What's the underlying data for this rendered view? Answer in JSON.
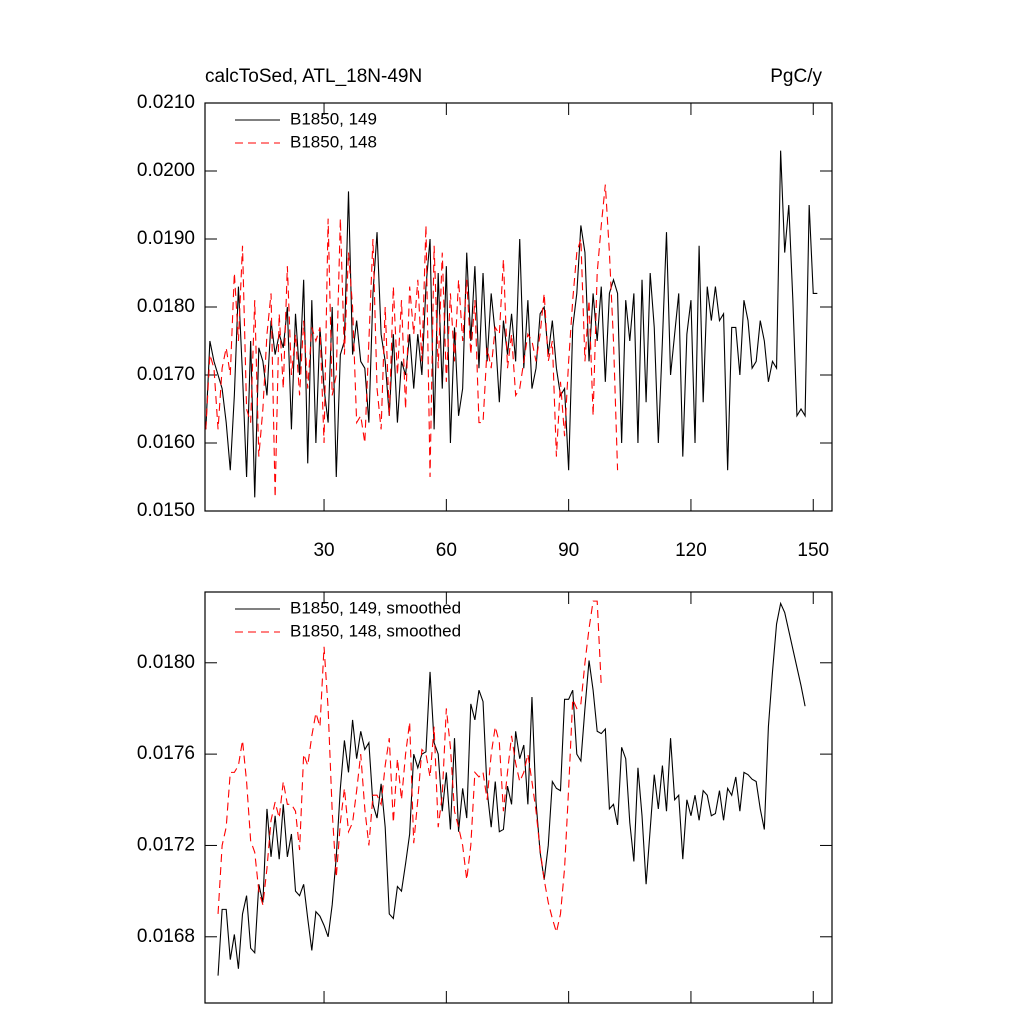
{
  "chart_data": [
    {
      "type": "line",
      "title": "calcToSed, ATL_18N-49N",
      "units": "PgC/y",
      "x": [
        1,
        2,
        3,
        4,
        5,
        6,
        7,
        8,
        9,
        10,
        11,
        12,
        13,
        14,
        15,
        16,
        17,
        18,
        19,
        20,
        21,
        22,
        23,
        24,
        25,
        26,
        27,
        28,
        29,
        30,
        31,
        32,
        33,
        34,
        35,
        36,
        37,
        38,
        39,
        40,
        41,
        42,
        43,
        44,
        45,
        46,
        47,
        48,
        49,
        50,
        51,
        52,
        53,
        54,
        55,
        56,
        57,
        58,
        59,
        60,
        61,
        62,
        63,
        64,
        65,
        66,
        67,
        68,
        69,
        70,
        71,
        72,
        73,
        74,
        75,
        76,
        77,
        78,
        79,
        80,
        81,
        82,
        83,
        84,
        85,
        86,
        87,
        88,
        89,
        90,
        91,
        92,
        93,
        94,
        95,
        96,
        97,
        98,
        99,
        100,
        101,
        102,
        103,
        104,
        105,
        106,
        107,
        108,
        109,
        110,
        111,
        112,
        113,
        114,
        115,
        116,
        117,
        118,
        119,
        120,
        121,
        122,
        123,
        124,
        125,
        126,
        127,
        128,
        129,
        130,
        131,
        132,
        133,
        134,
        135,
        136,
        137,
        138,
        139,
        140,
        141,
        142,
        143,
        144,
        145,
        146,
        147,
        148,
        149,
        150,
        151
      ],
      "series": [
        {
          "name": "B1850, 149",
          "color": "#000000",
          "dashed": false,
          "values": [
            0.0162,
            0.0175,
            0.0172,
            0.017,
            0.0168,
            0.0163,
            0.0156,
            0.0167,
            0.0183,
            0.017,
            0.0155,
            0.0175,
            0.0152,
            0.0174,
            0.0172,
            0.0167,
            0.0178,
            0.0173,
            0.0176,
            0.0174,
            0.018,
            0.0162,
            0.0179,
            0.017,
            0.0184,
            0.0157,
            0.0181,
            0.016,
            0.0177,
            0.0168,
            0.0163,
            0.018,
            0.0155,
            0.0173,
            0.0175,
            0.0197,
            0.0173,
            0.0178,
            0.0172,
            0.0171,
            0.0163,
            0.0182,
            0.0191,
            0.0176,
            0.0172,
            0.0164,
            0.0176,
            0.0163,
            0.0172,
            0.017,
            0.0176,
            0.0168,
            0.0176,
            0.017,
            0.0183,
            0.019,
            0.0162,
            0.0185,
            0.0168,
            0.0186,
            0.016,
            0.0177,
            0.0164,
            0.0168,
            0.0188,
            0.0175,
            0.0186,
            0.0171,
            0.0185,
            0.0172,
            0.0182,
            0.0176,
            0.0166,
            0.0178,
            0.0173,
            0.0179,
            0.0172,
            0.019,
            0.0171,
            0.0181,
            0.0168,
            0.0171,
            0.0179,
            0.018,
            0.0173,
            0.0178,
            0.0171,
            0.0167,
            0.0168,
            0.0156,
            0.0177,
            0.0182,
            0.0192,
            0.0188,
            0.0172,
            0.0182,
            0.0175,
            0.0183,
            0.0169,
            0.0182,
            0.0184,
            0.0182,
            0.016,
            0.0181,
            0.0175,
            0.0182,
            0.016,
            0.0184,
            0.0166,
            0.0185,
            0.0177,
            0.016,
            0.0175,
            0.0191,
            0.017,
            0.0176,
            0.0182,
            0.0158,
            0.0176,
            0.0181,
            0.016,
            0.0189,
            0.0166,
            0.0183,
            0.0178,
            0.0183,
            0.0178,
            0.0179,
            0.0156,
            0.0177,
            0.0177,
            0.017,
            0.0181,
            0.0178,
            0.0171,
            0.0172,
            0.0178,
            0.0175,
            0.0169,
            0.0172,
            0.0171,
            0.0203,
            0.0188,
            0.0195,
            0.0181,
            0.0164,
            0.0165,
            0.0164,
            0.0195,
            0.0182,
            0.0182
          ]
        },
        {
          "name": "B1850, 148",
          "color": "#ff0000",
          "dashed": true,
          "values": [
            0.0162,
            0.0173,
            0.0171,
            0.0162,
            0.0171,
            0.0174,
            0.017,
            0.0185,
            0.0175,
            0.0189,
            0.0165,
            0.0163,
            0.0181,
            0.0158,
            0.0165,
            0.0176,
            0.0182,
            0.0152,
            0.0179,
            0.0168,
            0.0186,
            0.017,
            0.0176,
            0.0167,
            0.0178,
            0.0168,
            0.0177,
            0.0175,
            0.0177,
            0.016,
            0.0193,
            0.0167,
            0.017,
            0.0193,
            0.0173,
            0.0188,
            0.018,
            0.0163,
            0.0164,
            0.016,
            0.0175,
            0.019,
            0.0168,
            0.0162,
            0.018,
            0.0164,
            0.0183,
            0.017,
            0.0181,
            0.0165,
            0.0183,
            0.0176,
            0.0184,
            0.0172,
            0.0192,
            0.0155,
            0.0189,
            0.0171,
            0.0188,
            0.0169,
            0.0182,
            0.0172,
            0.0184,
            0.0175,
            0.0184,
            0.0173,
            0.0181,
            0.0163,
            0.0163,
            0.0174,
            0.0171,
            0.0177,
            0.0176,
            0.0187,
            0.0171,
            0.0176,
            0.0167,
            0.0168,
            0.0172,
            0.0176,
            0.0175,
            0.0172,
            0.0176,
            0.0182,
            0.0172,
            0.0175,
            0.0158,
            0.0169,
            0.0161,
            0.0172,
            0.0181,
            0.0188,
            0.019,
            0.0172,
            0.0181,
            0.0164,
            0.0185,
            0.0192,
            0.0198,
            0.0188,
            0.0175,
            0.0156,
            null,
            null,
            null,
            null,
            null,
            null,
            null,
            null,
            null,
            null,
            null,
            null,
            null,
            null,
            null,
            null,
            null,
            null,
            null,
            null,
            null,
            null,
            null,
            null,
            null,
            null,
            null,
            null,
            null,
            null,
            null,
            null,
            null,
            null,
            null,
            null,
            null,
            null,
            null,
            null,
            null,
            null,
            null,
            null,
            null,
            null,
            null,
            null,
            null
          ]
        }
      ],
      "xlim": [
        0.8,
        154.6
      ],
      "xticks": [
        30,
        60,
        90,
        120,
        150
      ],
      "ylim": [
        0.015,
        0.021
      ],
      "yticks": [
        {
          "value": 0.015,
          "label": "0.0150"
        },
        {
          "value": 0.016,
          "label": "0.0160"
        },
        {
          "value": 0.017,
          "label": "0.0170"
        },
        {
          "value": 0.018,
          "label": "0.0180"
        },
        {
          "value": 0.019,
          "label": "0.0190"
        },
        {
          "value": 0.02,
          "label": "0.0200"
        },
        {
          "value": 0.021,
          "label": "0.0210"
        }
      ]
    },
    {
      "type": "line",
      "x": [
        4,
        5,
        6,
        7,
        8,
        9,
        10,
        11,
        12,
        13,
        14,
        15,
        16,
        17,
        18,
        19,
        20,
        21,
        22,
        23,
        24,
        25,
        26,
        27,
        28,
        29,
        30,
        31,
        32,
        33,
        34,
        35,
        36,
        37,
        38,
        39,
        40,
        41,
        42,
        43,
        44,
        45,
        46,
        47,
        48,
        49,
        50,
        51,
        52,
        53,
        54,
        55,
        56,
        57,
        58,
        59,
        60,
        61,
        62,
        63,
        64,
        65,
        66,
        67,
        68,
        69,
        70,
        71,
        72,
        73,
        74,
        75,
        76,
        77,
        78,
        79,
        80,
        81,
        82,
        83,
        84,
        85,
        86,
        87,
        88,
        89,
        90,
        91,
        92,
        93,
        94,
        95,
        96,
        97,
        98,
        99,
        100,
        101,
        102,
        103,
        104,
        105,
        106,
        107,
        108,
        109,
        110,
        111,
        112,
        113,
        114,
        115,
        116,
        117,
        118,
        119,
        120,
        121,
        122,
        123,
        124,
        125,
        126,
        127,
        128,
        129,
        130,
        131,
        132,
        133,
        134,
        135,
        136,
        137,
        138,
        139,
        140,
        141,
        142,
        143,
        144,
        145,
        146,
        147,
        148
      ],
      "series": [
        {
          "name": "B1850, 149, smoothed",
          "color": "#000000",
          "dashed": false,
          "values": [
            0.01663,
            0.01692,
            0.01692,
            0.0167,
            0.01681,
            0.01666,
            0.0169,
            0.01698,
            0.01675,
            0.01673,
            0.01703,
            0.01695,
            0.01736,
            0.01715,
            0.01733,
            0.01714,
            0.01738,
            0.01715,
            0.01725,
            0.017,
            0.01698,
            0.01703,
            0.01688,
            0.01674,
            0.01691,
            0.01689,
            0.01685,
            0.0168,
            0.01694,
            0.01715,
            0.01745,
            0.01766,
            0.01752,
            0.01775,
            0.01758,
            0.0177,
            0.01762,
            0.01765,
            0.01738,
            0.01732,
            0.01747,
            0.01728,
            0.0169,
            0.01688,
            0.01702,
            0.017,
            0.01712,
            0.01725,
            0.0176,
            0.01754,
            0.0176,
            0.01761,
            0.01796,
            0.01765,
            0.0176,
            0.01735,
            0.01752,
            0.01727,
            0.01767,
            0.01726,
            0.01745,
            0.01732,
            0.01782,
            0.01775,
            0.01788,
            0.01783,
            0.01744,
            0.01728,
            0.01748,
            0.01726,
            0.01727,
            0.01746,
            0.01738,
            0.0177,
            0.01758,
            0.01764,
            0.01738,
            0.01785,
            0.01739,
            0.01717,
            0.01705,
            0.0172,
            0.01748,
            0.01745,
            0.01744,
            0.01784,
            0.01784,
            0.01788,
            0.0176,
            0.01757,
            0.0178,
            0.01801,
            0.01788,
            0.0177,
            0.01769,
            0.01771,
            0.01736,
            0.01738,
            0.01729,
            0.01763,
            0.01758,
            0.0173,
            0.01713,
            0.01754,
            0.01733,
            0.01703,
            0.01727,
            0.01751,
            0.01736,
            0.01755,
            0.01735,
            0.01767,
            0.0174,
            0.01742,
            0.01714,
            0.0174,
            0.01733,
            0.01742,
            0.01731,
            0.01744,
            0.01742,
            0.01733,
            0.01734,
            0.01744,
            0.01731,
            0.01745,
            0.01742,
            0.0175,
            0.01735,
            0.01752,
            0.01751,
            0.01749,
            0.01748,
            0.01736,
            0.01727,
            0.01772,
            0.01796,
            0.01817,
            0.01826,
            0.01822,
            0.01814,
            0.01806,
            0.01798,
            0.0179,
            0.01781
          ]
        },
        {
          "name": "B1850, 148, smoothed",
          "color": "#ff0000",
          "dashed": true,
          "values": [
            0.0169,
            0.0172,
            0.01728,
            0.01752,
            0.01752,
            0.01755,
            0.01766,
            0.01748,
            0.01722,
            0.01717,
            0.017,
            0.01694,
            0.0171,
            0.01731,
            0.01739,
            0.01732,
            0.01748,
            0.01738,
            0.01738,
            0.01735,
            0.01718,
            0.0176,
            0.01755,
            0.01768,
            0.01778,
            0.01772,
            0.01807,
            0.0178,
            0.01735,
            0.01706,
            0.0173,
            0.01745,
            0.01726,
            0.0173,
            0.01744,
            0.0176,
            0.01736,
            0.0172,
            0.01742,
            0.01742,
            0.01738,
            0.01755,
            0.01767,
            0.0173,
            0.01758,
            0.0174,
            0.0176,
            0.01774,
            0.01721,
            0.0174,
            0.01762,
            0.0176,
            0.0175,
            0.01772,
            0.01728,
            0.01742,
            0.0178,
            0.01763,
            0.01735,
            0.01728,
            0.0172,
            0.01705,
            0.0172,
            0.01752,
            0.0175,
            0.01752,
            0.0174,
            0.0176,
            0.01772,
            0.01765,
            0.01735,
            0.01752,
            0.01768,
            0.01756,
            0.01748,
            0.01752,
            0.0176,
            0.01748,
            0.01735,
            0.01718,
            0.01705,
            0.01695,
            0.01688,
            0.01682,
            0.0169,
            0.0171,
            0.01745,
            0.01784,
            0.0178,
            0.01782,
            0.018,
            0.01815,
            0.01827,
            0.01827,
            0.0179,
            null,
            null,
            null,
            null,
            null,
            null,
            null,
            null,
            null,
            null,
            null,
            null,
            null,
            null,
            null,
            null,
            null,
            null,
            null,
            null,
            null,
            null,
            null,
            null,
            null,
            null,
            null,
            null,
            null,
            null,
            null,
            null,
            null,
            null,
            null,
            null,
            null,
            null,
            null,
            null,
            null,
            null,
            null,
            null,
            null,
            null,
            null,
            null,
            null,
            null
          ]
        }
      ],
      "xlim": [
        0.8,
        154.6
      ],
      "xticks": [
        30,
        60,
        90,
        120,
        150
      ],
      "ylim": [
        0.01651,
        0.01831
      ],
      "yticks": [
        {
          "value": 0.0168,
          "label": "0.0168"
        },
        {
          "value": 0.0172,
          "label": "0.0172"
        },
        {
          "value": 0.0176,
          "label": "0.0176"
        },
        {
          "value": 0.018,
          "label": "0.0180"
        }
      ]
    }
  ]
}
